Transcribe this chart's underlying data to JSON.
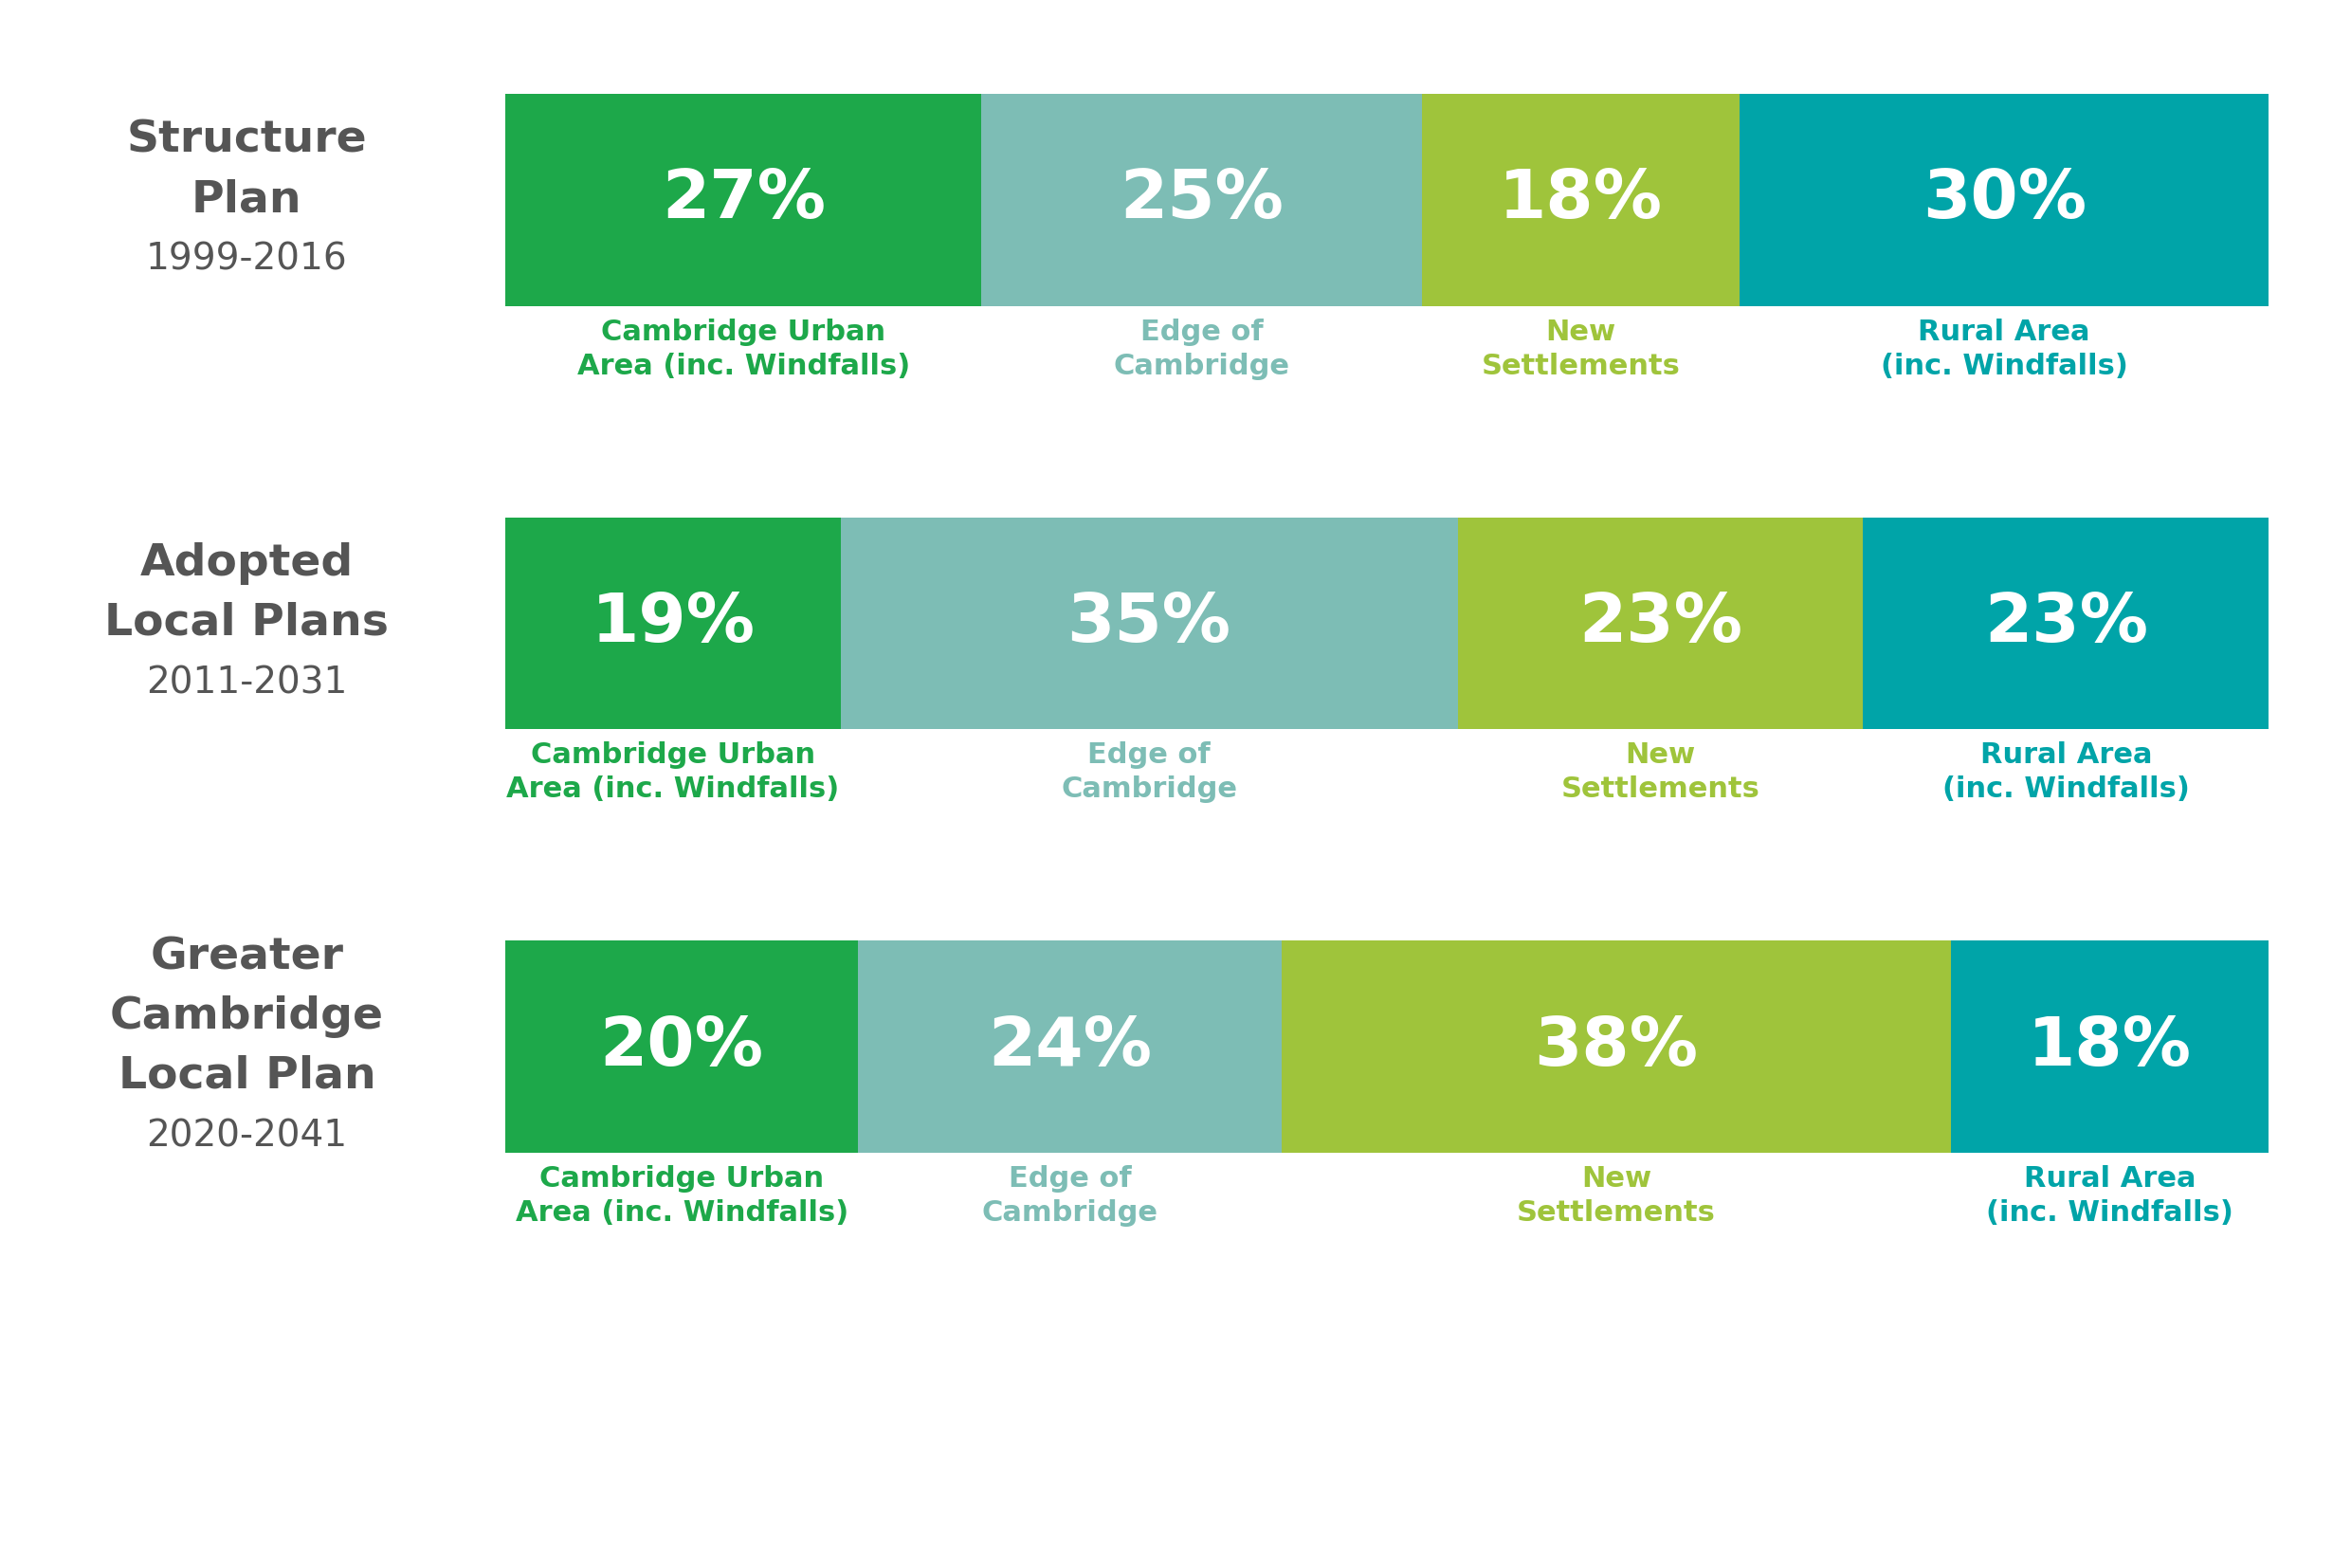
{
  "rows": [
    {
      "label_lines": [
        "Structure",
        "Plan",
        "1999-2016"
      ],
      "label_bold": [
        true,
        true,
        false
      ],
      "values": [
        27,
        25,
        18,
        30
      ],
      "labels": [
        "Cambridge Urban\nArea (inc. Windfalls)",
        "Edge of\nCambridge",
        "New\nSettlements",
        "Rural Area\n(inc. Windfalls)"
      ],
      "pct_texts": [
        "27%",
        "25%",
        "18%",
        "30%"
      ]
    },
    {
      "label_lines": [
        "Adopted",
        "Local Plans",
        "2011-2031"
      ],
      "label_bold": [
        true,
        true,
        false
      ],
      "values": [
        19,
        35,
        23,
        23
      ],
      "labels": [
        "Cambridge Urban\nArea (inc. Windfalls)",
        "Edge of\nCambridge",
        "New\nSettlements",
        "Rural Area\n(inc. Windfalls)"
      ],
      "pct_texts": [
        "19%",
        "35%",
        "23%",
        "23%"
      ]
    },
    {
      "label_lines": [
        "Greater",
        "Cambridge",
        "Local Plan",
        "2020-2041"
      ],
      "label_bold": [
        true,
        true,
        true,
        false
      ],
      "values": [
        20,
        24,
        38,
        18
      ],
      "labels": [
        "Cambridge Urban\nArea (inc. Windfalls)",
        "Edge of\nCambridge",
        "New\nSettlements",
        "Rural Area\n(inc. Windfalls)"
      ],
      "pct_texts": [
        "20%",
        "24%",
        "38%",
        "18%"
      ]
    }
  ],
  "seg_colors": [
    "#1da84a",
    "#7dbdb5",
    "#9fc43b",
    "#00a4a8"
  ],
  "label_colors": [
    "#1da84a",
    "#7dbdb5",
    "#9fc43b",
    "#00a4a8"
  ],
  "row_label_color": "#555555",
  "bg_color": "#ffffff",
  "bar_label_fontsize": 22,
  "pct_fontsize": 52,
  "row_label_bold_fontsize": 34,
  "row_label_year_fontsize": 28
}
